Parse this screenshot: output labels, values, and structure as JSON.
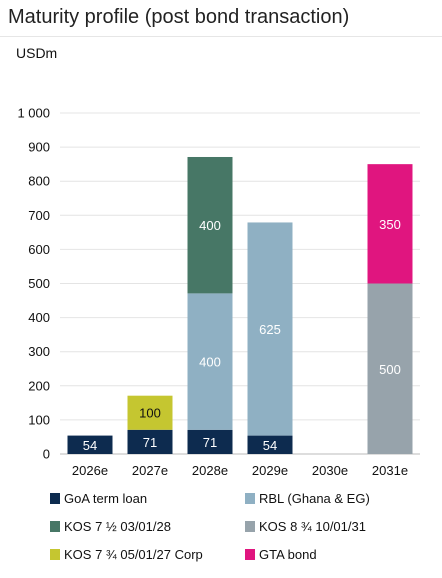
{
  "title": "Maturity profile (post bond transaction)",
  "unit_label": "USDm",
  "chart_data": {
    "type": "bar",
    "stacked": true,
    "title": "Maturity profile (post bond transaction)",
    "ylabel": "USDm",
    "xlabel": "",
    "categories": [
      "2026e",
      "2027e",
      "2028e",
      "2029e",
      "2030e",
      "2031e"
    ],
    "ylim": [
      0,
      1000
    ],
    "yticks": [
      0,
      100,
      200,
      300,
      400,
      500,
      600,
      700,
      800,
      900,
      1000
    ],
    "ytick_labels": [
      "0",
      "100",
      "200",
      "300",
      "400",
      "500",
      "600",
      "700",
      "800",
      "900",
      "1 000"
    ],
    "grid": true,
    "legend_position": "bottom",
    "series": [
      {
        "name": "GoA term loan",
        "color": "#0d2b4f",
        "label_color": "#ffffff",
        "values": [
          54,
          71,
          71,
          54,
          0,
          0
        ],
        "labels": [
          "54",
          "71",
          "71",
          "54",
          "",
          ""
        ]
      },
      {
        "name": "RBL (Ghana & EG)",
        "color": "#8fb0c3",
        "label_color": "#ffffff",
        "values": [
          0,
          0,
          400,
          625,
          0,
          0
        ],
        "labels": [
          "",
          "",
          "400",
          "625",
          "",
          ""
        ]
      },
      {
        "name": "KOS 7 ½ 03/01/28",
        "color": "#477766",
        "label_color": "#ffffff",
        "values": [
          0,
          0,
          400,
          0,
          0,
          0
        ],
        "labels": [
          "",
          "",
          "400",
          "",
          "",
          ""
        ]
      },
      {
        "name": "KOS 8 ¾ 10/01/31",
        "color": "#97a3ab",
        "label_color": "#ffffff",
        "values": [
          0,
          0,
          0,
          0,
          0,
          500
        ],
        "labels": [
          "",
          "",
          "",
          "",
          "",
          "500"
        ]
      },
      {
        "name": "KOS 7 ¾ 05/01/27 Corp",
        "color": "#c5c630",
        "label_color": "#111111",
        "values": [
          0,
          100,
          0,
          0,
          0,
          0
        ],
        "labels": [
          "",
          "100",
          "",
          "",
          "",
          ""
        ]
      },
      {
        "name": "GTA bond",
        "color": "#e0157f",
        "label_color": "#ffffff",
        "values": [
          0,
          0,
          0,
          0,
          0,
          350
        ],
        "labels": [
          "",
          "",
          "",
          "",
          "",
          "350"
        ]
      }
    ],
    "stack_order": [
      0,
      1,
      2,
      4,
      3,
      5
    ]
  }
}
